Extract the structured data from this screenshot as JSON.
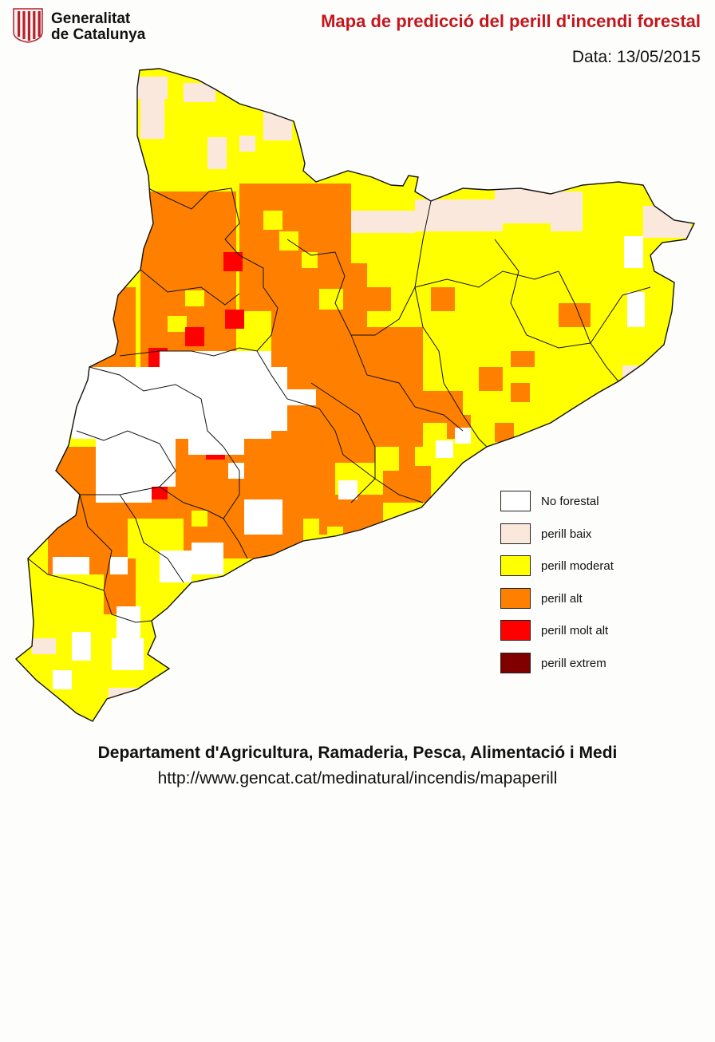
{
  "header": {
    "org_line1": "Generalitat",
    "org_line2": "de Catalunya",
    "title": "Mapa de predicció del perill d'incendi forestal",
    "date_text": "Data: 13/05/2015"
  },
  "legend": [
    {
      "key": "no_forestal",
      "label": "No forestal",
      "color": "#ffffff"
    },
    {
      "key": "baix",
      "label": "perill baix",
      "color": "#fbe8dc"
    },
    {
      "key": "moderat",
      "label": "perill moderat",
      "color": "#ffff00"
    },
    {
      "key": "alt",
      "label": "perill alt",
      "color": "#ff8000"
    },
    {
      "key": "molt_alt",
      "label": "perill molt alt",
      "color": "#ff0000"
    },
    {
      "key": "extrem",
      "label": "perill extrem",
      "color": "#800000"
    }
  ],
  "footer": {
    "department": "Departament d'Agricultura, Ramaderia, Pesca, Alimentació i Medi",
    "url": "http://www.gencat.cat/medinatural/incendis/mapaperill"
  }
}
